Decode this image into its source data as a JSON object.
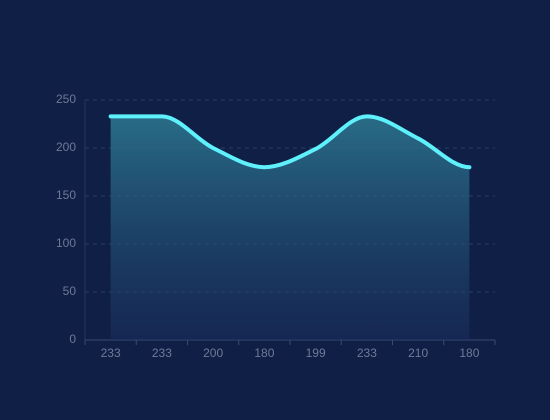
{
  "chart_data": {
    "type": "area",
    "categories": [
      "233",
      "233",
      "200",
      "180",
      "199",
      "233",
      "210",
      "180"
    ],
    "values": [
      233,
      233,
      200,
      180,
      199,
      233,
      210,
      180
    ],
    "color": "#5ef0fb",
    "ylim": [
      0,
      250
    ],
    "yticks": [
      0,
      50,
      100,
      150,
      200,
      250
    ],
    "grid": true
  }
}
